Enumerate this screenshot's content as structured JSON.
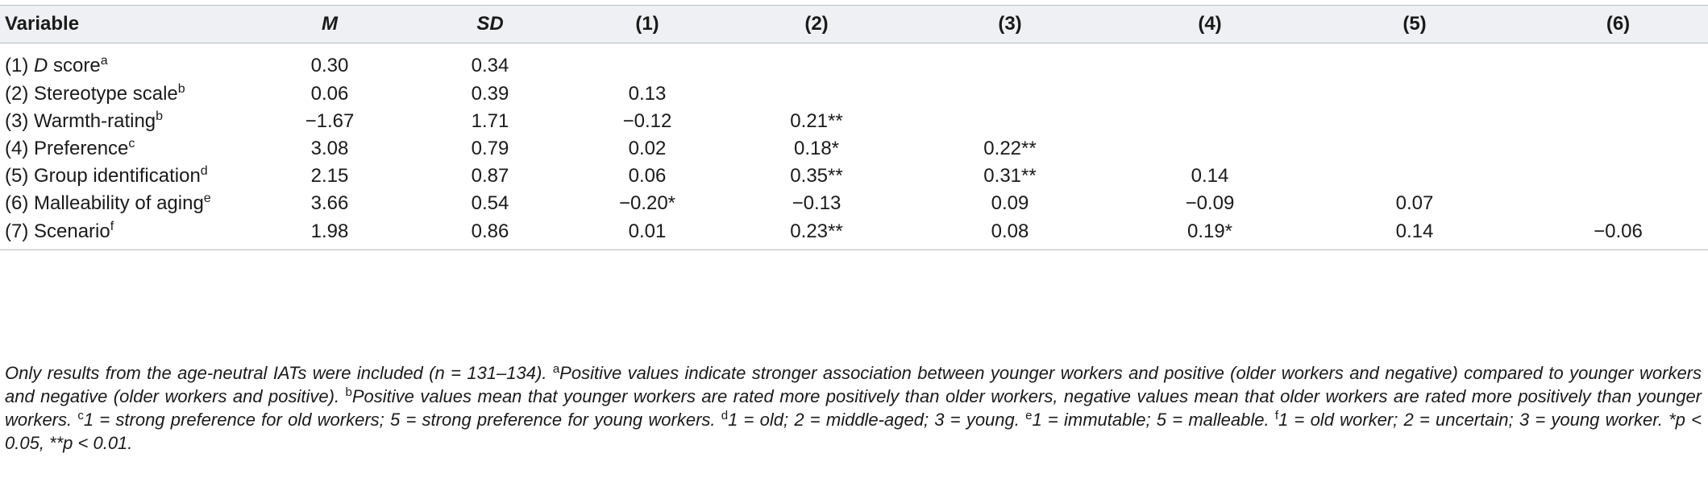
{
  "table": {
    "headers": [
      "Variable",
      "M",
      "SD",
      "(1)",
      "(2)",
      "(3)",
      "(4)",
      "(5)",
      "(6)"
    ],
    "rows": [
      {
        "prefix": "(1) ",
        "name_italic": "D",
        "name": " score",
        "sup": "a",
        "cells": [
          "0.30",
          "0.34",
          "",
          "",
          "",
          "",
          "",
          ""
        ]
      },
      {
        "prefix": "(2) ",
        "name_italic": "",
        "name": "Stereotype scale",
        "sup": "b",
        "cells": [
          "0.06",
          "0.39",
          "0.13",
          "",
          "",
          "",
          "",
          ""
        ]
      },
      {
        "prefix": "(3) ",
        "name_italic": "",
        "name": "Warmth-rating",
        "sup": "b",
        "cells": [
          "−1.67",
          "1.71",
          "−0.12",
          "0.21**",
          "",
          "",
          "",
          ""
        ]
      },
      {
        "prefix": "(4) ",
        "name_italic": "",
        "name": "Preference",
        "sup": "c",
        "cells": [
          "3.08",
          "0.79",
          "0.02",
          "0.18*",
          "0.22**",
          "",
          "",
          ""
        ]
      },
      {
        "prefix": "(5) ",
        "name_italic": "",
        "name": "Group identification",
        "sup": "d",
        "cells": [
          "2.15",
          "0.87",
          "0.06",
          "0.35**",
          "0.31**",
          "0.14",
          "",
          ""
        ]
      },
      {
        "prefix": "(6) ",
        "name_italic": "",
        "name": "Malleability of aging",
        "sup": "e",
        "cells": [
          "3.66",
          "0.54",
          "−0.20*",
          "−0.13",
          "0.09",
          "−0.09",
          "0.07",
          ""
        ]
      },
      {
        "prefix": "(7) ",
        "name_italic": "",
        "name": "Scenario",
        "sup": "f",
        "cells": [
          "1.98",
          "0.86",
          "0.01",
          "0.23**",
          "0.08",
          "0.19*",
          "0.14",
          "−0.06"
        ]
      }
    ]
  },
  "note": {
    "intro": "Only results from the age-neutral IATs were included (n = 131–134). ",
    "a_sup": "a",
    "a_text": "Positive values indicate stronger association between younger workers and positive (older workers and negative) compared to younger workers and negative (older workers and positive). ",
    "b_sup": "b",
    "b_text": "Positive values mean that younger workers are rated more positively than older workers, negative values mean that older workers are rated more positively than younger workers. ",
    "c_sup": "c",
    "c_text": "1 = strong preference for old workers; 5 = strong preference for young workers. ",
    "d_sup": "d",
    "d_text": "1 = old; 2 = middle-aged; 3 = young. ",
    "e_sup": "e",
    "e_text": "1 = immutable; 5 = malleable. ",
    "f_sup": "f",
    "f_text": "1 = old worker; 2 = uncertain; 3 = young worker. *p < 0.05, **p < 0.01."
  }
}
